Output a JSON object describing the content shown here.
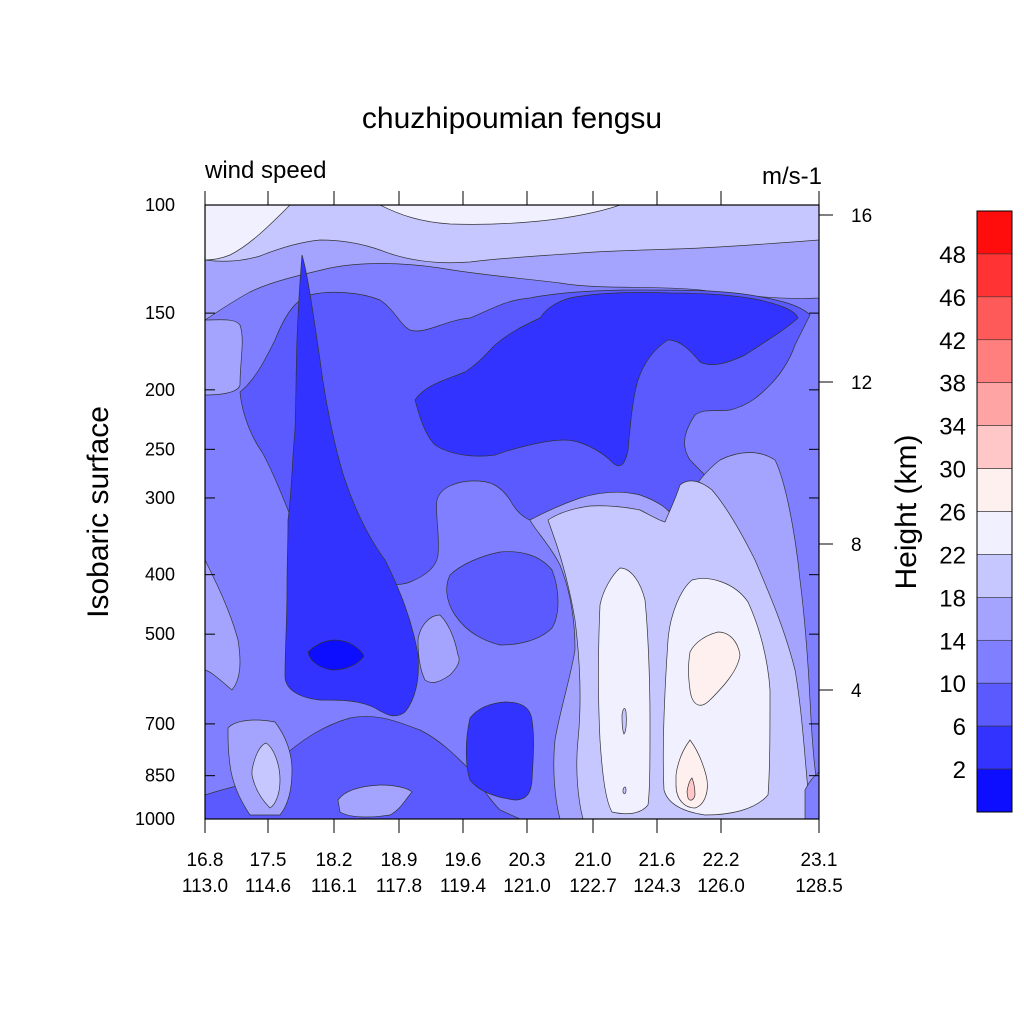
{
  "chart_data": {
    "type": "heatmap",
    "title": "chuzhipoumian fengsu",
    "left_string": "wind speed",
    "right_string": "m/s-1",
    "ylabel": "Isobaric surface",
    "ylabel_right": "Height (km)",
    "y_scale": "log",
    "ylim": [
      1000,
      100
    ],
    "y_ticks": [
      "100",
      "150",
      "200",
      "250",
      "300",
      "400",
      "500",
      "700",
      "850",
      "1000"
    ],
    "y_right_ticks": [
      "16",
      "12",
      "8",
      "4"
    ],
    "x_ticks": [
      [
        "16.8",
        "113.0"
      ],
      [
        "17.5",
        "114.6"
      ],
      [
        "18.2",
        "116.1"
      ],
      [
        "18.9",
        "117.8"
      ],
      [
        "19.6",
        "119.4"
      ],
      [
        "20.3",
        "121.0"
      ],
      [
        "21.0",
        "122.7"
      ],
      [
        "21.6",
        "124.3"
      ],
      [
        "22.2",
        "126.0"
      ],
      [
        "23.1",
        "128.5"
      ]
    ],
    "colorbar": {
      "labels": [
        "48",
        "46",
        "42",
        "38",
        "34",
        "30",
        "26",
        "22",
        "18",
        "14",
        "10",
        "6",
        "2"
      ],
      "colors": [
        "#ff0d0d",
        "#ff3333",
        "#ff5a5a",
        "#ff7f7f",
        "#ffa4a4",
        "#ffc7c7",
        "#fff0f0",
        "#f0f0ff",
        "#c7c7ff",
        "#a4a4ff",
        "#7f7fff",
        "#5a5aff",
        "#3333ff",
        "#0d0dff"
      ]
    },
    "grid": false
  }
}
